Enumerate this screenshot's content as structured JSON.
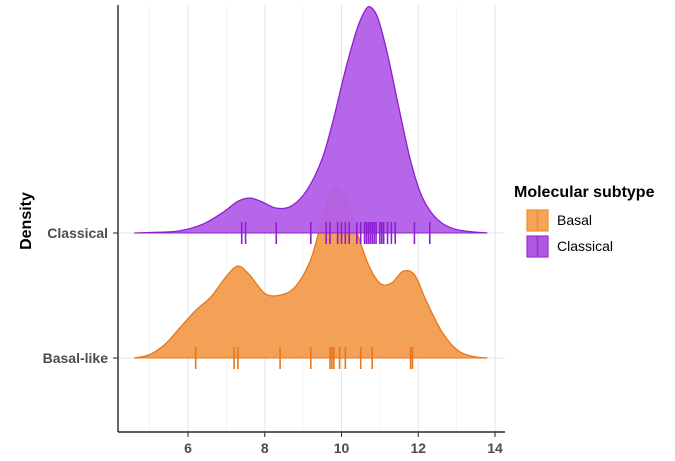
{
  "chart_data": {
    "type": "ridgeline",
    "ylabel": "Density",
    "xlabel": "",
    "xlim": [
      4.5,
      14.2
    ],
    "xticks": [
      6,
      8,
      10,
      12,
      14
    ],
    "grid": true,
    "legend": {
      "title": "Molecular subtype",
      "placement": "right",
      "entries": [
        {
          "label": "Basal",
          "color": "#f28e2b"
        },
        {
          "label": "Classical",
          "color": "#9b30d9"
        }
      ]
    },
    "ridges": [
      {
        "category": "Basal-like",
        "legend_label": "Basal",
        "fill": "#f39c4f",
        "stroke": "#e8761a",
        "density": [
          [
            4.6,
            0
          ],
          [
            5.0,
            0.02
          ],
          [
            5.4,
            0.08
          ],
          [
            5.8,
            0.18
          ],
          [
            6.2,
            0.28
          ],
          [
            6.6,
            0.36
          ],
          [
            7.0,
            0.48
          ],
          [
            7.3,
            0.54
          ],
          [
            7.6,
            0.49
          ],
          [
            8.0,
            0.38
          ],
          [
            8.4,
            0.37
          ],
          [
            8.8,
            0.42
          ],
          [
            9.2,
            0.58
          ],
          [
            9.5,
            0.82
          ],
          [
            9.7,
            0.97
          ],
          [
            9.9,
            1.0
          ],
          [
            10.1,
            0.94
          ],
          [
            10.4,
            0.74
          ],
          [
            10.7,
            0.55
          ],
          [
            11.0,
            0.44
          ],
          [
            11.3,
            0.44
          ],
          [
            11.6,
            0.51
          ],
          [
            11.9,
            0.49
          ],
          [
            12.2,
            0.34
          ],
          [
            12.6,
            0.16
          ],
          [
            13.0,
            0.05
          ],
          [
            13.4,
            0.01
          ],
          [
            13.8,
            0
          ]
        ],
        "rug": [
          6.2,
          7.2,
          7.3,
          8.4,
          9.2,
          9.7,
          9.75,
          9.8,
          9.95,
          10.1,
          10.5,
          10.8,
          11.8,
          11.85
        ]
      },
      {
        "category": "Classical",
        "legend_label": "Classical",
        "fill": "#b25ee8",
        "stroke": "#8e1fd0",
        "density": [
          [
            4.6,
            0
          ],
          [
            5.2,
            0.003
          ],
          [
            5.8,
            0.01
          ],
          [
            6.4,
            0.04
          ],
          [
            6.9,
            0.09
          ],
          [
            7.3,
            0.14
          ],
          [
            7.6,
            0.155
          ],
          [
            7.9,
            0.14
          ],
          [
            8.3,
            0.11
          ],
          [
            8.7,
            0.12
          ],
          [
            9.1,
            0.19
          ],
          [
            9.5,
            0.33
          ],
          [
            9.8,
            0.51
          ],
          [
            10.1,
            0.72
          ],
          [
            10.4,
            0.9
          ],
          [
            10.6,
            0.98
          ],
          [
            10.75,
            1.0
          ],
          [
            10.95,
            0.95
          ],
          [
            11.2,
            0.79
          ],
          [
            11.5,
            0.55
          ],
          [
            11.8,
            0.32
          ],
          [
            12.1,
            0.16
          ],
          [
            12.5,
            0.06
          ],
          [
            13.0,
            0.015
          ],
          [
            13.8,
            0
          ]
        ],
        "rug": [
          7.4,
          7.5,
          8.3,
          9.2,
          9.6,
          9.7,
          9.9,
          10.0,
          10.1,
          10.2,
          10.4,
          10.5,
          10.6,
          10.65,
          10.7,
          10.75,
          10.8,
          10.85,
          10.9,
          11.0,
          11.05,
          11.1,
          11.2,
          11.3,
          11.4,
          11.9,
          12.3
        ]
      }
    ]
  }
}
